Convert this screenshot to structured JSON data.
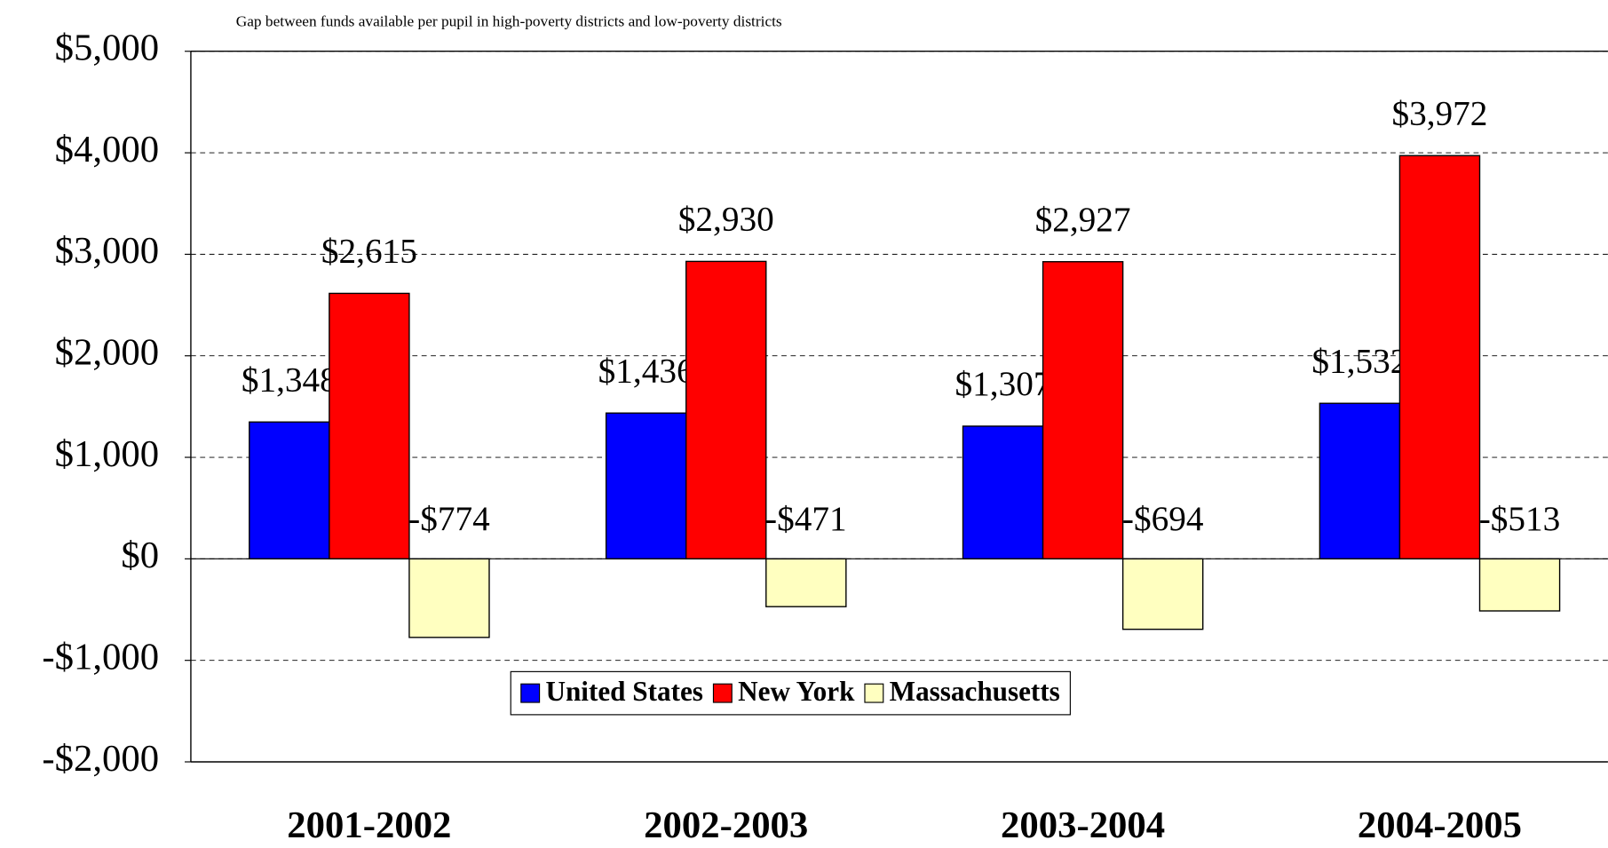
{
  "chart_data": {
    "type": "bar",
    "title": "Gap between funds available per pupil in high-poverty districts and low-poverty districts",
    "categories": [
      "2001-2002",
      "2002-2003",
      "2003-2004",
      "2004-2005"
    ],
    "series": [
      {
        "name": "United States",
        "color": "#0000ff",
        "values": [
          1348,
          1436,
          1307,
          1532
        ],
        "value_labels": [
          "$1,348",
          "$1,436",
          "$1,307",
          "$1,532"
        ]
      },
      {
        "name": "New York",
        "color": "#ff0000",
        "values": [
          2615,
          2930,
          2927,
          3972
        ],
        "value_labels": [
          "$2,615",
          "$2,930",
          "$2,927",
          "$3,972"
        ]
      },
      {
        "name": "Massachusetts",
        "color": "#ffffc0",
        "values": [
          -774,
          -471,
          -694,
          -513
        ],
        "value_labels": [
          "-$774",
          "-$471",
          "-$694",
          "-$513"
        ]
      }
    ],
    "ylim": [
      -2000,
      5000
    ],
    "yticks": [
      {
        "value": -2000,
        "label": "-$2,000"
      },
      {
        "value": -1000,
        "label": "-$1,000"
      },
      {
        "value": 0,
        "label": "$0"
      },
      {
        "value": 1000,
        "label": "$1,000"
      },
      {
        "value": 2000,
        "label": "$2,000"
      },
      {
        "value": 3000,
        "label": "$3,000"
      },
      {
        "value": 4000,
        "label": "$4,000"
      },
      {
        "value": 5000,
        "label": "$5,000"
      }
    ],
    "grid": true,
    "legend": "bottom"
  }
}
